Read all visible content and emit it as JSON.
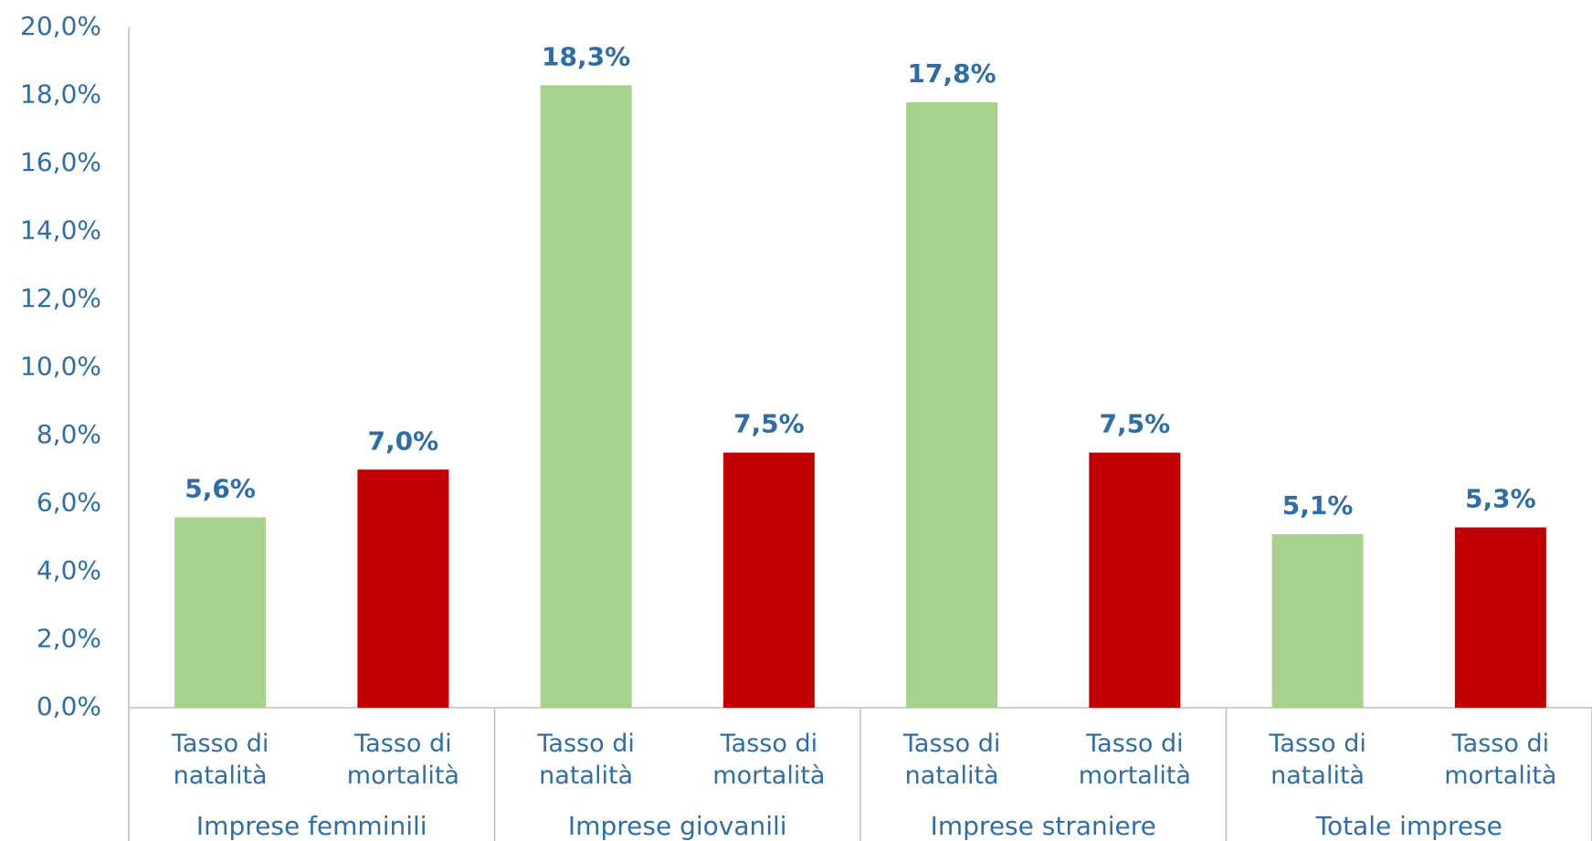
{
  "chart_data": {
    "type": "bar",
    "categories": [
      "Tasso di natalità",
      "Tasso di mortalità",
      "Tasso di natalità",
      "Tasso di mortalità",
      "Tasso di natalità",
      "Tasso di mortalità",
      "Tasso di natalità",
      "Tasso di mortalità"
    ],
    "groups": [
      "Imprese femminili",
      "Imprese giovanili",
      "Imprese straniere",
      "Totale imprese"
    ],
    "values": [
      5.6,
      7.0,
      18.3,
      7.5,
      17.8,
      7.5,
      5.1,
      5.3
    ],
    "value_labels": [
      "5,6%",
      "7,0%",
      "18,3%",
      "7,5%",
      "17,8%",
      "7,5%",
      "5,1%",
      "5,3%"
    ],
    "colors": [
      "#a9d18e",
      "#c00000",
      "#a9d18e",
      "#c00000",
      "#a9d18e",
      "#c00000",
      "#a9d18e",
      "#c00000"
    ],
    "ylim": [
      0,
      20
    ],
    "yticks": [
      {
        "value": 0,
        "label": "0,0%"
      },
      {
        "value": 2,
        "label": "2,0%"
      },
      {
        "value": 4,
        "label": "4,0%"
      },
      {
        "value": 6,
        "label": "6,0%"
      },
      {
        "value": 8,
        "label": "8,0%"
      },
      {
        "value": 10,
        "label": "10,0%"
      },
      {
        "value": 12,
        "label": "12,0%"
      },
      {
        "value": 14,
        "label": "14,0%"
      },
      {
        "value": 16,
        "label": "16,0%"
      },
      {
        "value": 18,
        "label": "18,0%"
      },
      {
        "value": 20,
        "label": "20,0%"
      }
    ],
    "grid": false
  }
}
